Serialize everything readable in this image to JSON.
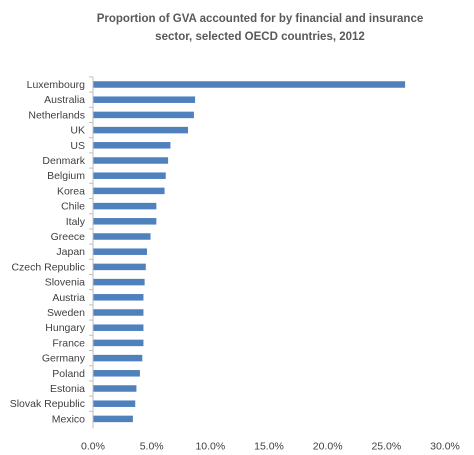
{
  "chart_data": {
    "type": "bar",
    "orientation": "horizontal",
    "title": "Proportion of GVA accounted for by financial and insurance sector, selected OECD countries, 2012",
    "title_lines": [
      "Proportion of GVA accounted for by financial and insurance",
      "sector, selected OECD countries, 2012"
    ],
    "categories": [
      "Luxembourg",
      "Australia",
      "Netherlands",
      "UK",
      "US",
      "Denmark",
      "Belgium",
      "Korea",
      "Chile",
      "Italy",
      "Greece",
      "Japan",
      "Czech Republic",
      "Slovenia",
      "Austria",
      "Sweden",
      "Hungary",
      "France",
      "Germany",
      "Poland",
      "Estonia",
      "Slovak Republic",
      "Mexico"
    ],
    "values": [
      26.6,
      8.7,
      8.6,
      8.1,
      6.6,
      6.4,
      6.2,
      6.1,
      5.4,
      5.4,
      4.9,
      4.6,
      4.5,
      4.4,
      4.3,
      4.3,
      4.3,
      4.3,
      4.2,
      4.0,
      3.7,
      3.6,
      3.4
    ],
    "xlim": [
      0,
      30
    ],
    "x_ticks": [
      0,
      5,
      10,
      15,
      20,
      25,
      30
    ],
    "x_tick_labels": [
      "0.0%",
      "5.0%",
      "10.0%",
      "15.0%",
      "20.0%",
      "25.0%",
      "30.0%"
    ],
    "xlabel": "",
    "ylabel": "",
    "grid": false,
    "legend": "none",
    "bar_color": "#4f81bd",
    "axis_color": "#bfbfbf"
  }
}
